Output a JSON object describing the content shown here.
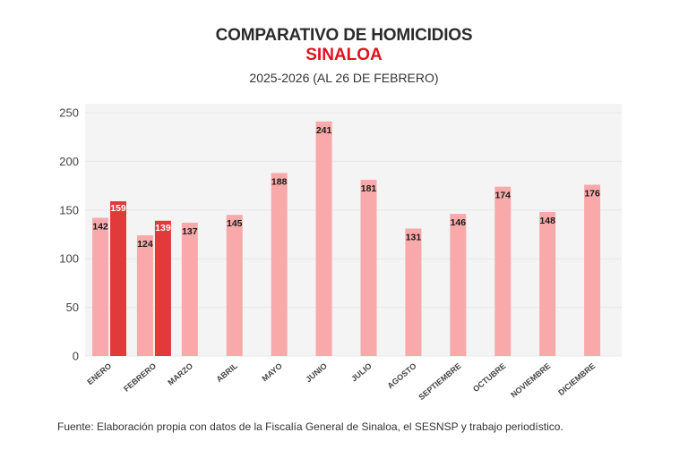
{
  "header": {
    "title": "COMPARATIVO DE HOMICIDIOS",
    "subtitle": "SINALOA",
    "period": "2025-2026 (AL 26 DE FEBRERO)"
  },
  "footer": {
    "source": "Fuente: Elaboración propia con datos de la Fiscalía General de Sinaloa, el SESNSP y trabajo periodístico."
  },
  "colors": {
    "series_2025": "#f9a9a9",
    "series_2026": "#e2393b",
    "plot_background": "#f4f4f4",
    "gridline": "#e8e8e8",
    "title": "#2b2b2b",
    "subtitle": "#e0121f",
    "label_dark": "#1a1a1a",
    "label_light": "#ffffff"
  },
  "chart_data": {
    "type": "bar",
    "title": "COMPARATIVO DE HOMICIDIOS",
    "subtitle": "SINALOA",
    "xlabel": "",
    "ylabel": "",
    "ylim": [
      0,
      250
    ],
    "yticks": [
      0,
      50,
      100,
      150,
      200,
      250
    ],
    "grid": true,
    "legend": "none",
    "categories": [
      "ENERO",
      "FEBRERO",
      "MARZO",
      "ABRIL",
      "MAYO",
      "JUNIO",
      "JULIO",
      "AGOSTO",
      "SEPTIEMBRE",
      "OCTUBRE",
      "NOVIEMBRE",
      "DICIEMBRE"
    ],
    "series": [
      {
        "name": "2025",
        "values": [
          142,
          124,
          137,
          145,
          188,
          241,
          181,
          131,
          146,
          174,
          148,
          176
        ]
      },
      {
        "name": "2026",
        "values": [
          159,
          139,
          null,
          null,
          null,
          null,
          null,
          null,
          null,
          null,
          null,
          null
        ]
      }
    ]
  }
}
